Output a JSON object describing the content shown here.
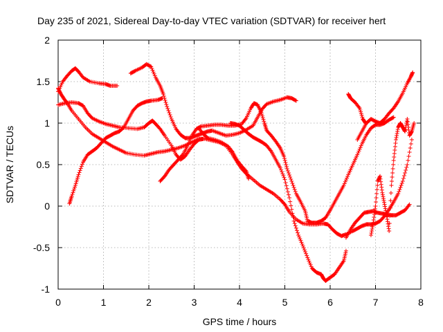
{
  "chart_data": {
    "type": "scatter",
    "title": "Day 235 of 2021, Sidereal Day-to-day VTEC variation (SDTVAR) for receiver hert",
    "xlabel": "GPS time / hours",
    "ylabel": "SDTVAR / TECUs",
    "xlim": [
      0,
      8
    ],
    "ylim": [
      -1,
      2
    ],
    "xticks": [
      0,
      1,
      2,
      3,
      4,
      5,
      6,
      7,
      8
    ],
    "yticks": [
      -1,
      -0.5,
      0,
      0.5,
      1,
      1.5,
      2
    ],
    "xtick_labels": [
      "0",
      "1",
      "2",
      "3",
      "4",
      "5",
      "6",
      "7",
      "8"
    ],
    "ytick_labels": [
      "-1",
      "-0.5",
      "0",
      "0.5",
      "1",
      "1.5",
      "2"
    ],
    "grid": true,
    "marker": "+",
    "color": "#ff0000",
    "tracks": [
      {
        "points": [
          [
            0.0,
            1.38
          ],
          [
            0.1,
            1.5
          ],
          [
            0.2,
            1.57
          ],
          [
            0.3,
            1.63
          ],
          [
            0.38,
            1.66
          ],
          [
            0.45,
            1.62
          ],
          [
            0.55,
            1.55
          ],
          [
            0.7,
            1.5
          ],
          [
            0.9,
            1.48
          ],
          [
            1.05,
            1.47
          ],
          [
            1.15,
            1.45
          ],
          [
            1.3,
            1.45
          ]
        ]
      },
      {
        "points": [
          [
            0.0,
            1.42
          ],
          [
            0.05,
            1.36
          ],
          [
            0.12,
            1.3
          ],
          [
            0.2,
            1.24
          ],
          [
            0.3,
            1.15
          ],
          [
            0.45,
            1.05
          ],
          [
            0.6,
            0.95
          ],
          [
            0.75,
            0.87
          ],
          [
            0.9,
            0.82
          ],
          [
            1.05,
            0.77
          ],
          [
            1.2,
            0.72
          ],
          [
            1.35,
            0.68
          ],
          [
            1.5,
            0.64
          ],
          [
            1.7,
            0.62
          ],
          [
            1.9,
            0.61
          ],
          [
            2.05,
            0.63
          ],
          [
            2.2,
            0.65
          ],
          [
            2.35,
            0.66
          ],
          [
            2.5,
            0.68
          ],
          [
            2.65,
            0.7
          ],
          [
            2.8,
            0.73
          ],
          [
            2.95,
            0.77
          ],
          [
            3.1,
            0.81
          ],
          [
            3.25,
            0.81
          ],
          [
            3.4,
            0.79
          ],
          [
            3.55,
            0.77
          ],
          [
            3.7,
            0.73
          ],
          [
            3.85,
            0.62
          ],
          [
            3.95,
            0.53
          ],
          [
            4.05,
            0.45
          ],
          [
            4.15,
            0.39
          ],
          [
            4.3,
            0.32
          ],
          [
            4.45,
            0.25
          ],
          [
            4.6,
            0.2
          ],
          [
            4.75,
            0.15
          ],
          [
            4.9,
            0.08
          ],
          [
            5.0,
            0.02
          ],
          [
            5.1,
            -0.07
          ],
          [
            5.25,
            -0.16
          ],
          [
            5.4,
            -0.21
          ],
          [
            5.55,
            -0.22
          ],
          [
            5.7,
            -0.22
          ],
          [
            5.85,
            -0.21
          ],
          [
            5.95,
            -0.22
          ],
          [
            6.05,
            -0.28
          ],
          [
            6.15,
            -0.33
          ],
          [
            6.25,
            -0.36
          ],
          [
            6.35,
            -0.34
          ],
          [
            6.5,
            -0.3
          ],
          [
            6.6,
            -0.27
          ],
          [
            6.7,
            -0.24
          ],
          [
            6.8,
            -0.22
          ],
          [
            6.9,
            -0.22
          ],
          [
            7.0,
            -0.21
          ],
          [
            7.1,
            -0.18
          ],
          [
            7.2,
            -0.12
          ],
          [
            7.3,
            -0.04
          ],
          [
            7.4,
            0.05
          ],
          [
            7.5,
            0.15
          ],
          [
            7.6,
            0.3
          ],
          [
            7.7,
            0.5
          ],
          [
            7.8,
            0.8
          ]
        ]
      },
      {
        "points": [
          [
            0.0,
            1.22
          ],
          [
            0.15,
            1.24
          ],
          [
            0.3,
            1.25
          ],
          [
            0.45,
            1.24
          ],
          [
            0.55,
            1.21
          ],
          [
            0.65,
            1.12
          ],
          [
            0.75,
            1.06
          ],
          [
            0.9,
            1.02
          ],
          [
            1.05,
            0.99
          ],
          [
            1.2,
            0.97
          ],
          [
            1.35,
            0.95
          ],
          [
            1.55,
            0.94
          ],
          [
            1.75,
            0.93
          ],
          [
            1.9,
            0.95
          ],
          [
            2.0,
            1.0
          ],
          [
            2.08,
            1.03
          ],
          [
            2.15,
            0.99
          ],
          [
            2.25,
            0.93
          ],
          [
            2.35,
            0.85
          ],
          [
            2.5,
            0.73
          ],
          [
            2.6,
            0.62
          ],
          [
            2.7,
            0.56
          ],
          [
            2.8,
            0.6
          ],
          [
            2.9,
            0.68
          ],
          [
            3.0,
            0.75
          ],
          [
            3.1,
            0.8
          ],
          [
            3.2,
            0.81
          ]
        ]
      },
      {
        "points": [
          [
            0.25,
            0.03
          ],
          [
            0.3,
            0.12
          ],
          [
            0.38,
            0.25
          ],
          [
            0.45,
            0.38
          ],
          [
            0.55,
            0.53
          ],
          [
            0.65,
            0.62
          ],
          [
            0.75,
            0.66
          ],
          [
            0.85,
            0.7
          ],
          [
            0.95,
            0.76
          ],
          [
            1.05,
            0.82
          ],
          [
            1.15,
            0.85
          ],
          [
            1.25,
            0.88
          ],
          [
            1.35,
            0.9
          ],
          [
            1.45,
            0.95
          ],
          [
            1.55,
            1.05
          ],
          [
            1.65,
            1.15
          ],
          [
            1.75,
            1.21
          ],
          [
            1.85,
            1.24
          ],
          [
            1.95,
            1.26
          ],
          [
            2.05,
            1.27
          ],
          [
            2.2,
            1.28
          ],
          [
            2.3,
            1.3
          ]
        ]
      },
      {
        "points": [
          [
            1.6,
            1.6
          ],
          [
            1.7,
            1.63
          ],
          [
            1.85,
            1.67
          ],
          [
            1.95,
            1.71
          ],
          [
            2.05,
            1.68
          ],
          [
            2.15,
            1.55
          ],
          [
            2.25,
            1.45
          ],
          [
            2.32,
            1.35
          ],
          [
            2.4,
            1.2
          ],
          [
            2.5,
            1.05
          ],
          [
            2.6,
            0.93
          ],
          [
            2.7,
            0.86
          ],
          [
            2.8,
            0.82
          ],
          [
            2.9,
            0.82
          ],
          [
            3.0,
            0.84
          ],
          [
            3.1,
            0.86
          ],
          [
            3.2,
            0.88
          ],
          [
            3.3,
            0.9
          ],
          [
            3.4,
            0.91
          ],
          [
            3.55,
            0.88
          ],
          [
            3.7,
            0.85
          ],
          [
            3.85,
            0.86
          ],
          [
            4.0,
            0.88
          ],
          [
            4.15,
            0.92
          ],
          [
            4.3,
            0.97
          ],
          [
            4.4,
            1.07
          ],
          [
            4.5,
            1.17
          ],
          [
            4.6,
            1.23
          ],
          [
            4.75,
            1.26
          ],
          [
            4.9,
            1.28
          ],
          [
            5.05,
            1.31
          ],
          [
            5.15,
            1.3
          ],
          [
            5.25,
            1.27
          ]
        ]
      },
      {
        "points": [
          [
            2.25,
            0.3
          ],
          [
            2.35,
            0.36
          ],
          [
            2.45,
            0.44
          ],
          [
            2.55,
            0.5
          ],
          [
            2.65,
            0.56
          ],
          [
            2.75,
            0.62
          ],
          [
            2.85,
            0.72
          ],
          [
            2.95,
            0.85
          ],
          [
            3.05,
            0.93
          ],
          [
            3.15,
            0.96
          ],
          [
            3.3,
            0.97
          ],
          [
            3.45,
            0.98
          ],
          [
            3.6,
            0.98
          ],
          [
            3.75,
            0.97
          ],
          [
            3.9,
            0.97
          ],
          [
            4.05,
            0.99
          ],
          [
            4.15,
            1.06
          ],
          [
            4.25,
            1.18
          ],
          [
            4.32,
            1.24
          ],
          [
            4.4,
            1.22
          ],
          [
            4.48,
            1.13
          ],
          [
            4.55,
            1.0
          ],
          [
            4.6,
            0.91
          ],
          [
            4.7,
            0.85
          ],
          [
            4.8,
            0.78
          ],
          [
            4.9,
            0.7
          ],
          [
            4.98,
            0.6
          ],
          [
            5.05,
            0.45
          ],
          [
            5.15,
            0.3
          ],
          [
            5.25,
            0.15
          ],
          [
            5.35,
            0.05
          ],
          [
            5.45,
            -0.06
          ],
          [
            5.5,
            -0.18
          ],
          [
            5.6,
            -0.2
          ],
          [
            5.7,
            -0.2
          ],
          [
            5.8,
            -0.18
          ],
          [
            5.9,
            -0.14
          ],
          [
            6.0,
            -0.05
          ],
          [
            6.1,
            0.05
          ],
          [
            6.2,
            0.15
          ],
          [
            6.3,
            0.25
          ],
          [
            6.4,
            0.38
          ],
          [
            6.5,
            0.5
          ],
          [
            6.6,
            0.62
          ],
          [
            6.7,
            0.75
          ],
          [
            6.8,
            0.86
          ],
          [
            6.9,
            0.94
          ],
          [
            7.0,
            0.98
          ],
          [
            7.1,
            0.98
          ],
          [
            7.2,
            1.0
          ],
          [
            7.3,
            1.04
          ],
          [
            7.4,
            1.07
          ]
        ]
      },
      {
        "points": [
          [
            3.1,
            0.94
          ],
          [
            3.2,
            0.87
          ],
          [
            3.3,
            0.82
          ],
          [
            3.45,
            0.8
          ],
          [
            3.6,
            0.77
          ],
          [
            3.75,
            0.72
          ],
          [
            3.85,
            0.65
          ],
          [
            3.95,
            0.55
          ],
          [
            4.05,
            0.48
          ],
          [
            4.15,
            0.42
          ],
          [
            4.2,
            0.33
          ]
        ]
      },
      {
        "points": [
          [
            3.8,
            1.0
          ],
          [
            3.9,
            0.99
          ],
          [
            4.0,
            0.97
          ],
          [
            4.1,
            0.92
          ],
          [
            4.2,
            0.87
          ],
          [
            4.3,
            0.83
          ],
          [
            4.4,
            0.8
          ],
          [
            4.5,
            0.77
          ],
          [
            4.6,
            0.73
          ],
          [
            4.7,
            0.66
          ],
          [
            4.8,
            0.56
          ],
          [
            4.9,
            0.46
          ],
          [
            5.0,
            0.32
          ],
          [
            5.1,
            0.1
          ],
          [
            5.2,
            -0.18
          ],
          [
            5.3,
            -0.35
          ],
          [
            5.4,
            -0.48
          ],
          [
            5.5,
            -0.62
          ],
          [
            5.6,
            -0.75
          ],
          [
            5.7,
            -0.8
          ],
          [
            5.8,
            -0.82
          ],
          [
            5.85,
            -0.87
          ],
          [
            5.9,
            -0.9
          ],
          [
            6.0,
            -0.86
          ],
          [
            6.1,
            -0.82
          ],
          [
            6.2,
            -0.74
          ],
          [
            6.3,
            -0.66
          ],
          [
            6.35,
            -0.54
          ]
        ]
      },
      {
        "points": [
          [
            6.35,
            -0.38
          ],
          [
            6.45,
            -0.28
          ],
          [
            6.55,
            -0.2
          ],
          [
            6.65,
            -0.14
          ],
          [
            6.75,
            -0.08
          ],
          [
            6.85,
            -0.07
          ],
          [
            6.95,
            -0.06
          ],
          [
            7.05,
            -0.08
          ],
          [
            7.15,
            -0.09
          ],
          [
            7.25,
            -0.1
          ],
          [
            7.35,
            -0.11
          ],
          [
            7.45,
            -0.11
          ],
          [
            7.55,
            -0.08
          ],
          [
            7.65,
            -0.05
          ],
          [
            7.75,
            0.02
          ]
        ]
      },
      {
        "points": [
          [
            6.4,
            1.35
          ],
          [
            6.45,
            1.3
          ],
          [
            6.55,
            1.25
          ],
          [
            6.65,
            1.18
          ],
          [
            6.72,
            1.05
          ],
          [
            6.78,
            1.0
          ]
        ]
      },
      {
        "points": [
          [
            6.6,
            0.8
          ],
          [
            6.7,
            0.9
          ],
          [
            6.8,
            1.0
          ],
          [
            6.9,
            1.05
          ],
          [
            7.0,
            1.02
          ],
          [
            7.1,
            1.0
          ],
          [
            7.2,
            1.05
          ],
          [
            7.3,
            1.12
          ],
          [
            7.4,
            1.18
          ],
          [
            7.5,
            1.26
          ],
          [
            7.6,
            1.36
          ],
          [
            7.7,
            1.48
          ],
          [
            7.78,
            1.56
          ],
          [
            7.82,
            1.61
          ]
        ]
      },
      {
        "points": [
          [
            6.9,
            -0.35
          ],
          [
            6.95,
            -0.2
          ],
          [
            7.0,
            0.0
          ],
          [
            7.05,
            0.3
          ],
          [
            7.1,
            0.36
          ],
          [
            7.15,
            0.16
          ],
          [
            7.2,
            0.02
          ],
          [
            7.25,
            -0.13
          ],
          [
            7.3,
            -0.3
          ],
          [
            7.35,
            0.25
          ],
          [
            7.4,
            0.55
          ],
          [
            7.45,
            0.8
          ],
          [
            7.5,
            0.95
          ],
          [
            7.55,
            1.0
          ],
          [
            7.6,
            0.95
          ],
          [
            7.65,
            0.9
          ],
          [
            7.7,
            1.05
          ],
          [
            7.75,
            0.85
          ],
          [
            7.8,
            0.9
          ],
          [
            7.85,
            1.0
          ]
        ]
      }
    ]
  }
}
